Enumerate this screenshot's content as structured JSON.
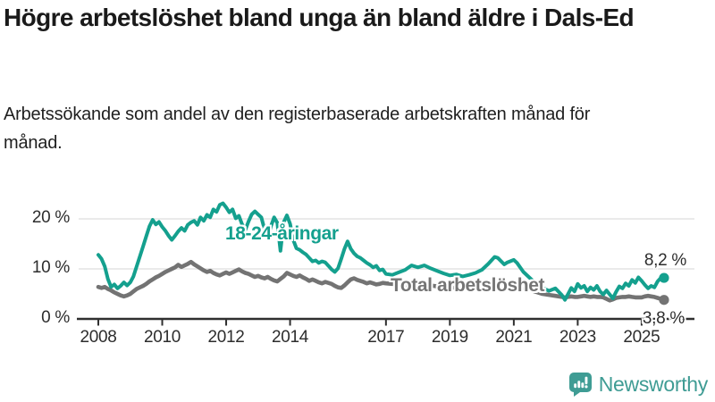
{
  "header": {
    "title": "Högre arbetslöshet bland unga än bland äldre i Dals-Ed",
    "subtitle": "Arbetssökande som andel av den registerbaserade arbetskraften månad för månad."
  },
  "chart_data": {
    "type": "line",
    "title": "Högre arbetslöshet bland unga än bland äldre i Dals-Ed",
    "subtitle": "Arbetssökande som andel av den registerbaserade arbetskraften månad för månad.",
    "unit": "%",
    "grid": "horizontal",
    "legend": "inline-labels",
    "xlim": [
      2007.4,
      2026.65
    ],
    "ylim": [
      0,
      24.6
    ],
    "y_tick_values": [
      0,
      10,
      20
    ],
    "y_tick_labels": [
      "0 %",
      "10 %",
      "20 %"
    ],
    "x_tick_values": [
      2008,
      2010,
      2012,
      2014,
      2017,
      2019,
      2021,
      2023,
      2025
    ],
    "x_tick_labels": [
      "2008",
      "2010",
      "2012",
      "2014",
      "2017",
      "2019",
      "2021",
      "2023",
      "2025"
    ],
    "x": [
      2008.0,
      2008.1,
      2008.2,
      2008.3,
      2008.4,
      2008.5,
      2008.6,
      2008.7,
      2008.8,
      2008.9,
      2009.0,
      2009.1,
      2009.2,
      2009.3,
      2009.4,
      2009.5,
      2009.6,
      2009.7,
      2009.8,
      2009.9,
      2010.0,
      2010.1,
      2010.2,
      2010.3,
      2010.4,
      2010.5,
      2010.6,
      2010.7,
      2010.8,
      2010.9,
      2011.0,
      2011.1,
      2011.2,
      2011.3,
      2011.4,
      2011.5,
      2011.6,
      2011.7,
      2011.8,
      2011.9,
      2012.0,
      2012.1,
      2012.2,
      2012.3,
      2012.4,
      2012.5,
      2012.6,
      2012.7,
      2012.8,
      2012.9,
      2013.0,
      2013.1,
      2013.2,
      2013.3,
      2013.4,
      2013.5,
      2013.6,
      2013.7,
      2013.8,
      2013.9,
      2014.0,
      2014.1,
      2014.2,
      2014.3,
      2014.4,
      2014.5,
      2014.6,
      2014.7,
      2014.8,
      2014.9,
      2015.0,
      2015.1,
      2015.2,
      2015.3,
      2015.4,
      2015.5,
      2015.6,
      2015.7,
      2015.8,
      2015.9,
      2016.0,
      2016.1,
      2016.2,
      2016.3,
      2016.4,
      2016.5,
      2016.6,
      2016.7,
      2016.8,
      2016.9,
      2017.0,
      2017.2,
      2017.4,
      2017.6,
      2017.8,
      2018.0,
      2018.2,
      2018.4,
      2018.6,
      2018.8,
      2019.0,
      2019.2,
      2019.4,
      2019.6,
      2019.8,
      2020.0,
      2020.2,
      2020.4,
      2020.5,
      2020.7,
      2020.8,
      2021.0,
      2021.1,
      2021.3,
      2021.5,
      2021.7,
      2021.9,
      2022.1,
      2022.3,
      2022.5,
      2022.6,
      2022.8,
      2022.9,
      2023.0,
      2023.1,
      2023.2,
      2023.3,
      2023.4,
      2023.5,
      2023.6,
      2023.7,
      2023.8,
      2023.9,
      2024.0,
      2024.1,
      2024.2,
      2024.3,
      2024.4,
      2024.5,
      2024.6,
      2024.7,
      2024.8,
      2024.9,
      2025.0,
      2025.1,
      2025.2,
      2025.3,
      2025.4,
      2025.5,
      2025.6,
      2025.7
    ],
    "series": [
      {
        "name": "18-24-åringar",
        "color": "#14a08e",
        "end_label": "8,2 %",
        "last_value": 8.2,
        "values": [
          12.8,
          12.0,
          10.5,
          8.0,
          6.4,
          6.9,
          6.1,
          6.6,
          7.3,
          6.7,
          7.3,
          8.5,
          10.5,
          12.5,
          14.5,
          16.5,
          18.5,
          19.8,
          18.9,
          19.4,
          18.4,
          17.6,
          16.6,
          15.8,
          16.6,
          17.5,
          18.2,
          17.6,
          18.8,
          19.3,
          19.6,
          18.8,
          20.3,
          19.6,
          20.8,
          20.3,
          21.9,
          21.4,
          22.8,
          23.1,
          22.3,
          21.3,
          21.9,
          20.1,
          20.6,
          18.9,
          17.8,
          19.5,
          20.9,
          21.5,
          20.9,
          20.3,
          17.9,
          16.0,
          18.5,
          20.3,
          19.2,
          13.6,
          19.3,
          20.7,
          19.0,
          15.8,
          14.1,
          13.8,
          13.3,
          12.9,
          12.2,
          11.5,
          11.7,
          11.2,
          11.5,
          11.3,
          10.6,
          9.9,
          9.4,
          10.1,
          12.0,
          14.0,
          15.5,
          14.0,
          13.1,
          12.5,
          12.2,
          11.7,
          11.2,
          10.8,
          10.3,
          10.6,
          9.7,
          9.9,
          9.0,
          8.8,
          9.3,
          9.8,
          10.7,
          10.3,
          10.7,
          10.1,
          9.6,
          9.1,
          8.7,
          8.9,
          8.5,
          8.8,
          9.2,
          9.8,
          11.0,
          12.4,
          12.2,
          10.9,
          11.3,
          11.8,
          11.2,
          9.4,
          8.2,
          7.0,
          6.2,
          5.6,
          6.1,
          4.8,
          3.8,
          6.2,
          5.5,
          7.0,
          6.2,
          6.6,
          5.5,
          6.3,
          5.8,
          6.6,
          5.5,
          4.9,
          5.7,
          4.9,
          4.1,
          5.4,
          6.5,
          6.1,
          7.1,
          6.6,
          7.8,
          7.2,
          8.3,
          7.6,
          6.8,
          6.1,
          6.6,
          6.3,
          7.5,
          8.2,
          8.2
        ]
      },
      {
        "name": "Total arbetslöshet",
        "color": "#737373",
        "end_label": "3,8 %",
        "last_value": 3.8,
        "values": [
          6.4,
          6.2,
          6.4,
          6.0,
          5.7,
          5.3,
          5.0,
          4.7,
          4.5,
          4.7,
          5.0,
          5.5,
          6.0,
          6.3,
          6.6,
          7.0,
          7.5,
          7.9,
          8.3,
          8.6,
          9.0,
          9.4,
          9.7,
          10.0,
          10.3,
          10.8,
          10.4,
          10.7,
          11.0,
          11.4,
          10.9,
          10.5,
          10.1,
          9.7,
          9.4,
          9.6,
          9.2,
          8.9,
          8.7,
          9.0,
          9.3,
          9.0,
          9.3,
          9.6,
          9.9,
          9.5,
          9.2,
          9.0,
          8.7,
          8.4,
          8.6,
          8.3,
          8.1,
          8.4,
          8.0,
          7.7,
          7.5,
          8.0,
          8.5,
          9.2,
          8.9,
          8.6,
          8.4,
          8.7,
          8.3,
          8.0,
          7.6,
          7.9,
          7.6,
          7.3,
          7.1,
          7.4,
          7.2,
          7.0,
          6.6,
          6.3,
          6.2,
          6.7,
          7.3,
          7.9,
          8.1,
          7.8,
          7.6,
          7.4,
          7.1,
          7.3,
          7.1,
          6.9,
          7.0,
          7.2,
          7.1,
          7.0,
          7.2,
          6.9,
          6.7,
          6.8,
          6.6,
          6.7,
          6.5,
          6.3,
          6.4,
          6.2,
          6.1,
          6.2,
          6.3,
          6.5,
          7.0,
          7.4,
          7.4,
          7.1,
          7.0,
          6.7,
          6.6,
          6.2,
          5.8,
          5.4,
          5.0,
          4.8,
          4.6,
          4.4,
          4.3,
          4.5,
          4.4,
          4.4,
          4.5,
          4.6,
          4.5,
          4.4,
          4.5,
          4.4,
          4.4,
          4.3,
          4.0,
          3.7,
          3.9,
          4.2,
          4.3,
          4.4,
          4.4,
          4.5,
          4.4,
          4.3,
          4.3,
          4.3,
          4.5,
          4.6,
          4.5,
          4.4,
          4.2,
          4.0,
          3.8
        ]
      }
    ]
  },
  "colors": {
    "young_line": "#14a08e",
    "total_line": "#737373",
    "grid": "#e3e3e3",
    "axis": "#2f2f2f",
    "text": "#1a1a1a",
    "brand": "#3f9c94"
  },
  "footer": {
    "brand": "Newsworthy"
  }
}
